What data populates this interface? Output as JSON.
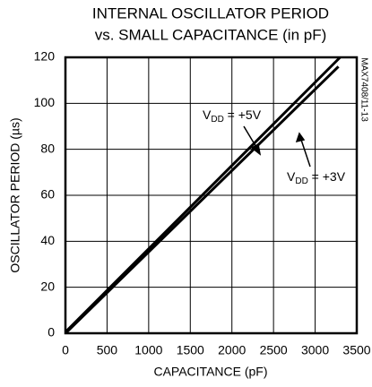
{
  "chart_data": {
    "type": "line",
    "title_lines": [
      "INTERNAL OSCILLATOR PERIOD",
      "vs. SMALL CAPACITANCE (in pF)"
    ],
    "xlabel": "CAPACITANCE (pF)",
    "ylabel": "OSCILLATOR PERIOD (µs)",
    "side_note": "MAX7408/11-13",
    "xlim": [
      0,
      3500
    ],
    "xticks": [
      0,
      500,
      1000,
      1500,
      2000,
      2500,
      3000,
      3500
    ],
    "ylim": [
      0,
      120
    ],
    "yticks": [
      0,
      20,
      40,
      60,
      80,
      100,
      120
    ],
    "grid": true,
    "series": [
      {
        "color": "#000000",
        "x": [
          0,
          3300
        ],
        "values": [
          0.5,
          120
        ]
      },
      {
        "color": "#000000",
        "x": [
          0,
          3280
        ],
        "values": [
          0,
          116
        ]
      }
    ],
    "annotations": [
      {
        "parts": [
          "V",
          "DD",
          " = +5V"
        ]
      },
      {
        "parts": [
          "V",
          "DD",
          " = +3V"
        ]
      }
    ]
  }
}
